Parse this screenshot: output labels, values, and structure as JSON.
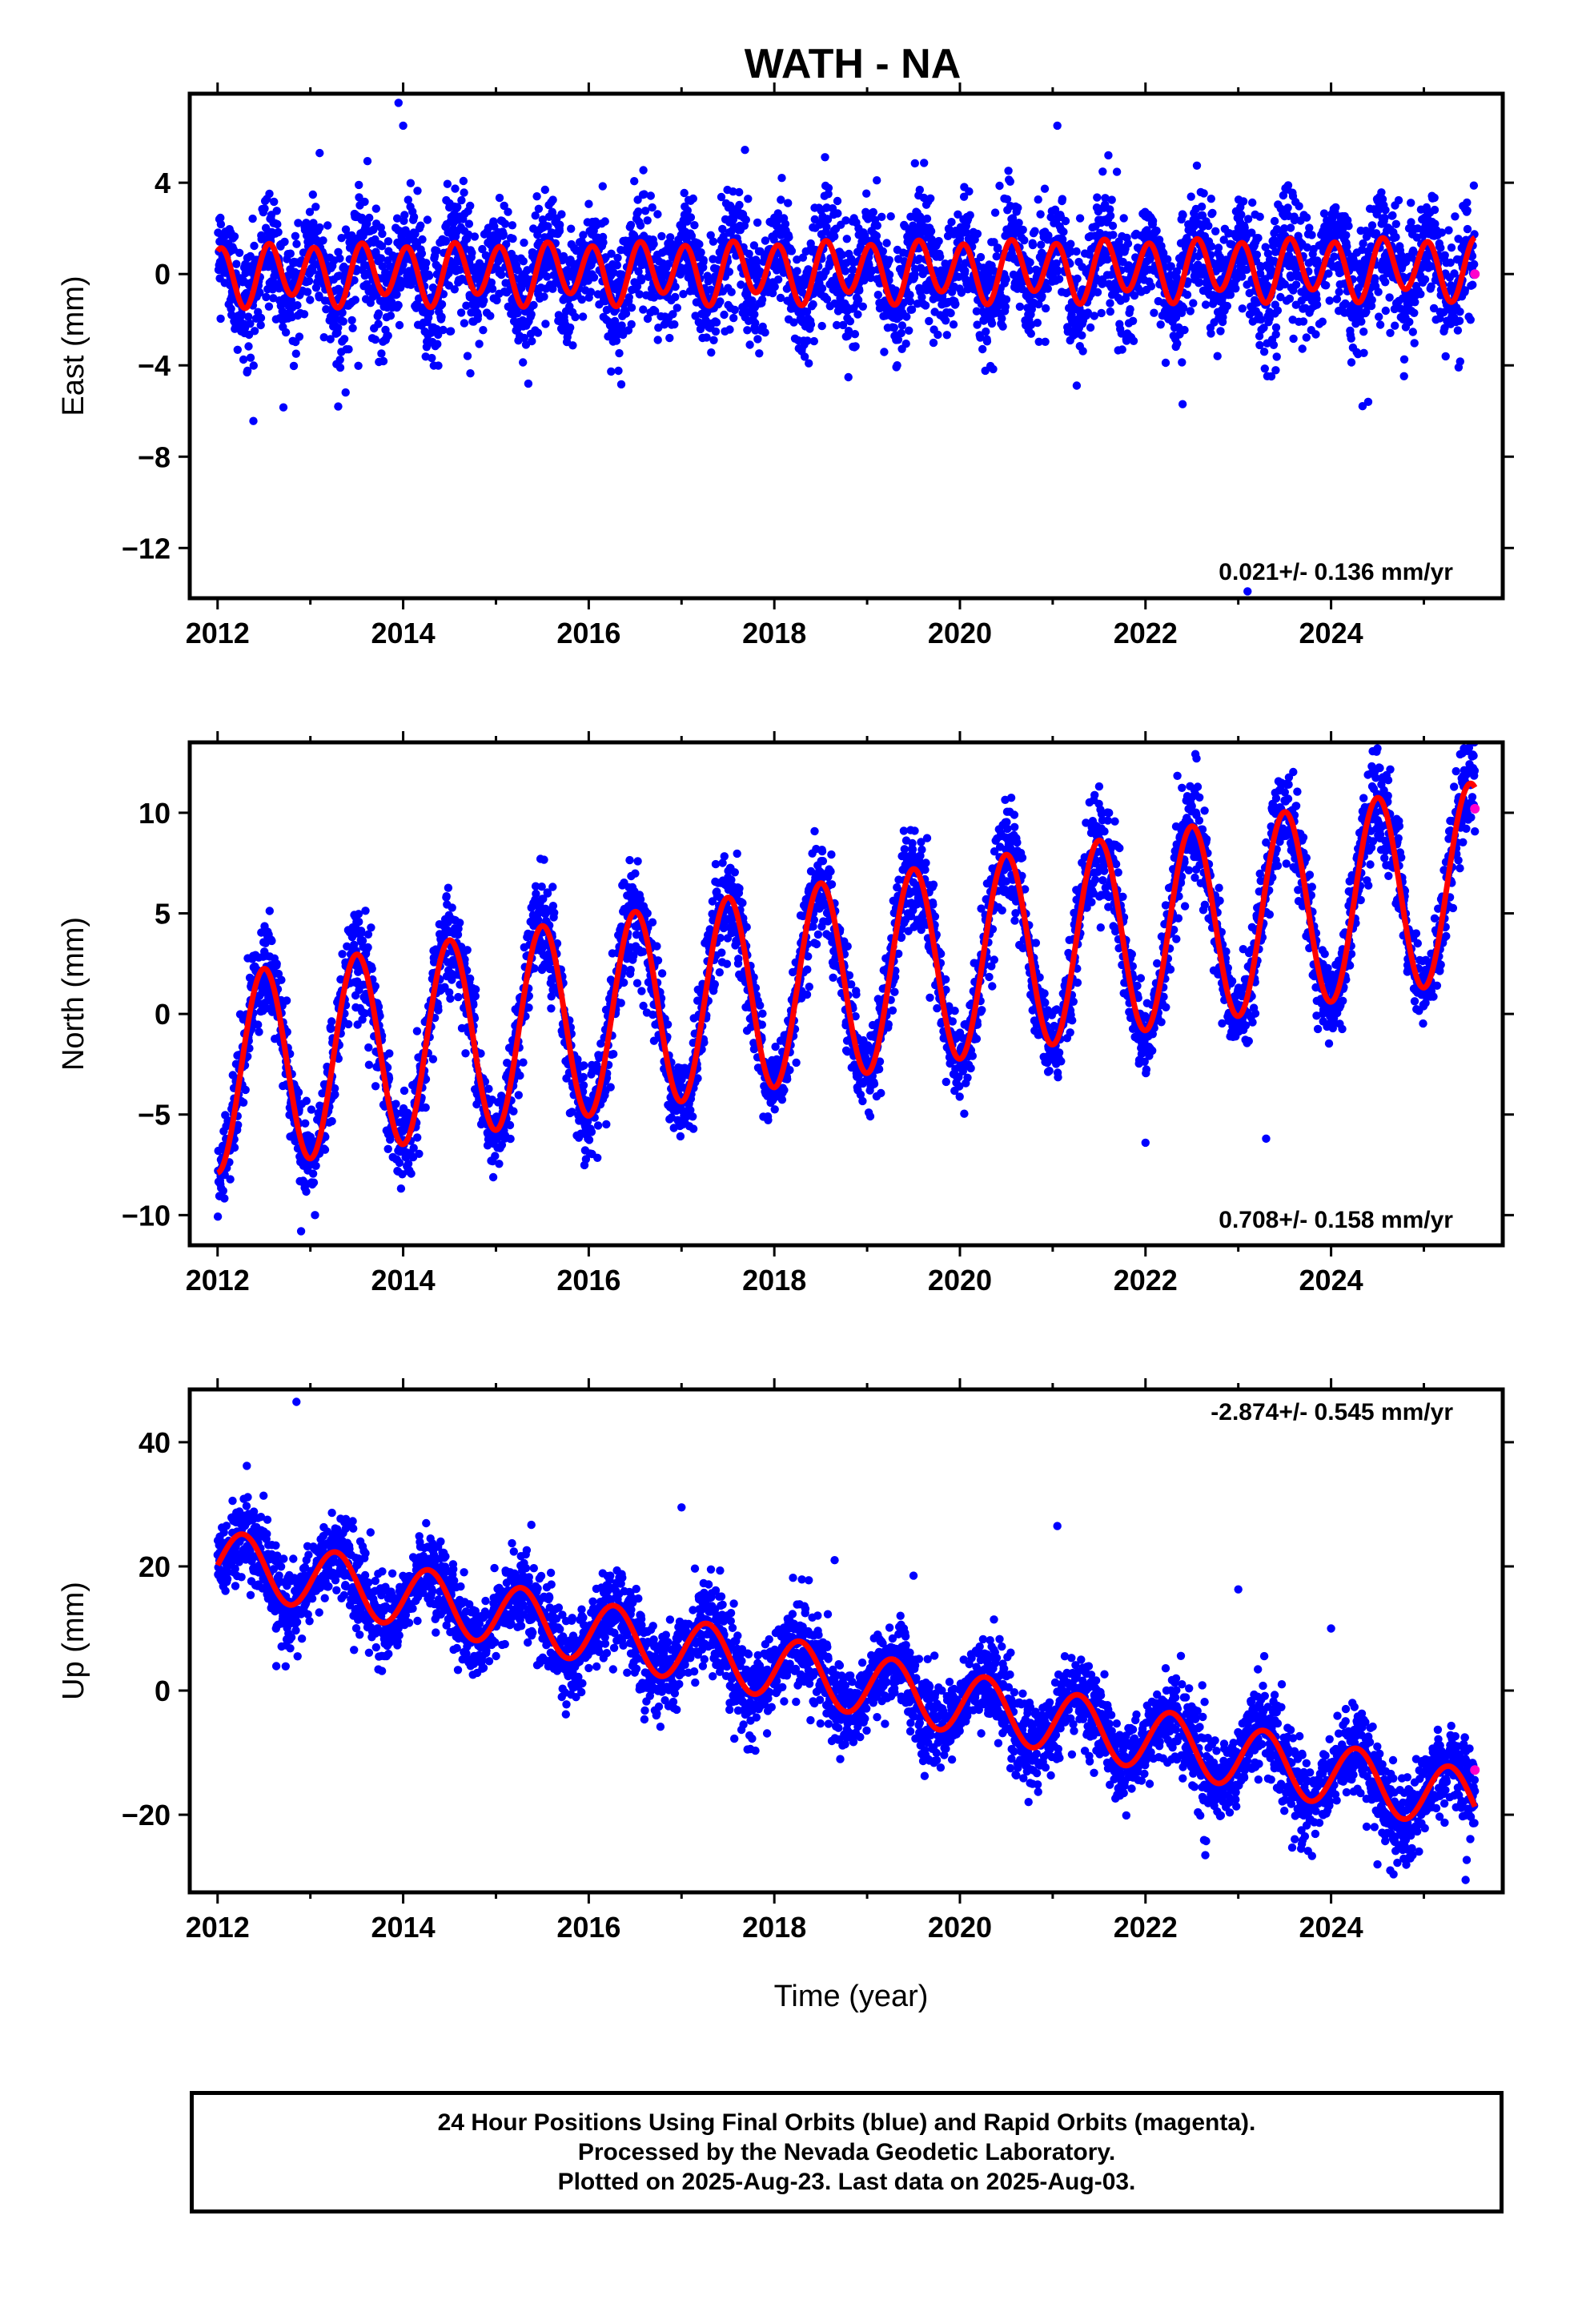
{
  "title": "WATH - NA",
  "colors": {
    "final_orbits": "#0000ff",
    "rapid_orbits": "#ff00cc",
    "model_fit": "#ff0000",
    "frame": "#000000"
  },
  "xlabel": "Time (year)",
  "footer": {
    "line1": "24 Hour Positions Using Final Orbits (blue) and Rapid Orbits (magenta).",
    "line2": "Processed by the Nevada Geodetic Laboratory.",
    "line3": "Plotted on 2025-Aug-23. Last data on 2025-Aug-03."
  },
  "chart_data": [
    {
      "type": "scatter",
      "ylabel": "East (mm)",
      "rate_label": "0.021+/- 0.136 mm/yr",
      "xlim": [
        2011.7,
        2025.85
      ],
      "ylim": [
        -14.2,
        7.9
      ],
      "xticks": [
        "2012",
        "2014",
        "2016",
        "2018",
        "2020",
        "2022",
        "2024"
      ],
      "yticks": [
        "4",
        "0",
        "−4",
        "−8",
        "−12"
      ],
      "trend": {
        "intercept_2012": 0.0,
        "rate_mm_per_yr": 0.021
      },
      "seasonal": {
        "annual_cos": 0.0,
        "annual_sin": -0.3,
        "semiannual_cos": 1.0,
        "semiannual_sin": 0.7
      },
      "scatter_sigma": 1.2,
      "outliers": [
        [
          2013.1,
          5.3
        ],
        [
          2013.3,
          -5.8
        ],
        [
          2013.95,
          7.5
        ],
        [
          2014.0,
          6.5
        ],
        [
          2021.05,
          6.5
        ],
        [
          2021.6,
          5.2
        ],
        [
          2022.4,
          -5.7
        ],
        [
          2024.4,
          -5.6
        ],
        [
          2023.1,
          -13.9
        ]
      ],
      "rapid_points": [
        [
          2025.55,
          0.0
        ]
      ]
    },
    {
      "type": "scatter",
      "ylabel": "North (mm)",
      "rate_label": "0.708+/- 0.158 mm/yr",
      "xlim": [
        2011.7,
        2025.85
      ],
      "ylim": [
        -11.5,
        13.5
      ],
      "xticks": [
        "2012",
        "2014",
        "2016",
        "2018",
        "2020",
        "2022",
        "2024"
      ],
      "yticks": [
        "10",
        "5",
        "0",
        "−5",
        "−10"
      ],
      "trend": {
        "intercept_2012": -3.0,
        "rate_mm_per_yr": 0.708
      },
      "seasonal": {
        "annual_cos": -4.9,
        "annual_sin": 0.0,
        "semiannual_cos": 0.0,
        "semiannual_sin": 0.0
      },
      "scatter_sigma": 1.1,
      "outliers": [
        [
          2012.9,
          -10.8
        ],
        [
          2013.05,
          -10.0
        ],
        [
          2022.0,
          -6.4
        ],
        [
          2023.3,
          -6.2
        ],
        [
          2022.55,
          12.7
        ],
        [
          2024.5,
          13.2
        ]
      ],
      "rapid_points": [
        [
          2025.55,
          10.2
        ]
      ]
    },
    {
      "type": "scatter",
      "ylabel": "Up (mm)",
      "rate_label": "-2.874+/- 0.545 mm/yr",
      "xlim": [
        2011.7,
        2025.85
      ],
      "ylim": [
        -32.5,
        48.5
      ],
      "xticks": [
        "2012",
        "2014",
        "2016",
        "2018",
        "2020",
        "2022",
        "2024"
      ],
      "yticks": [
        "40",
        "20",
        "0",
        "−20"
      ],
      "trend": {
        "intercept_2012": 21.0,
        "rate_mm_per_yr": -2.874
      },
      "seasonal": {
        "annual_cos": -0.8,
        "annual_sin": 4.9,
        "semiannual_cos": 0.0,
        "semiannual_sin": 0.0
      },
      "scatter_sigma": 3.2,
      "outliers": [
        [
          2012.85,
          46.5
        ],
        [
          2017.0,
          29.5
        ],
        [
          2021.05,
          26.5
        ],
        [
          2018.65,
          21.0
        ],
        [
          2019.5,
          18.5
        ],
        [
          2023.0,
          16.3
        ],
        [
          2024.0,
          10.0
        ],
        [
          2024.5,
          -28.0
        ],
        [
          2025.45,
          -30.5
        ]
      ],
      "rapid_points": [
        [
          2025.55,
          -12.8
        ]
      ]
    }
  ]
}
